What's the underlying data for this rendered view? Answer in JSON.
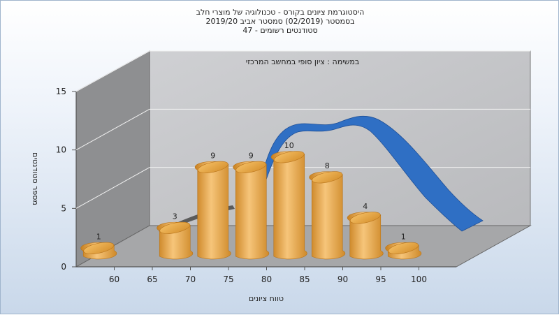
{
  "header": {
    "line1": "היסטוגרמת ציונים בקורס - טכנולוגיה של מוצרי חלב",
    "line2": "בסמסטר  (02/2019)  סמסטר אביב 2019/20",
    "line3": "סטודנטים רשומים - 47"
  },
  "chart_data": {
    "type": "bar",
    "subtitle": "במשימה : ציון סופי במחשב המרכזי",
    "xlabel": "טווח ציונים",
    "ylabel": "מספר סטודנטים",
    "ylim": [
      0,
      15
    ],
    "yticks": [
      0,
      5,
      10,
      15
    ],
    "x_ticks": [
      "60",
      "65",
      "70",
      "75",
      "80",
      "85",
      "90",
      "95",
      "100"
    ],
    "categories": [
      "<60",
      "60-65",
      "65-70",
      "70-75",
      "75-80",
      "80-85",
      "85-90",
      "90-95",
      "95-100"
    ],
    "values": [
      1,
      0,
      3,
      9,
      9,
      10,
      8,
      4,
      1
    ],
    "grid": true,
    "curve": {
      "type": "normal-distribution-ribbon",
      "color": "#2f6fc4",
      "shadow_color": "#555555"
    },
    "bar_color": "#e8a73f"
  }
}
